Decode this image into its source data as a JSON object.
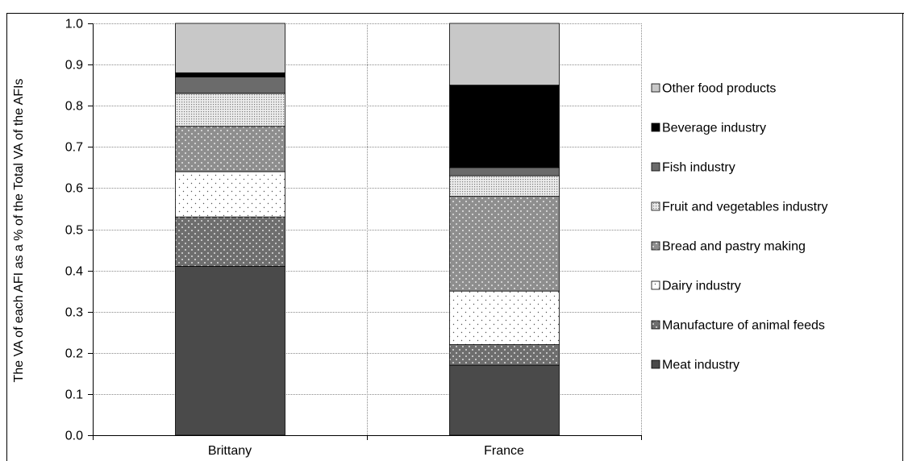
{
  "chart_data": {
    "type": "bar",
    "stacked": true,
    "title": "",
    "xlabel": "",
    "ylabel": "The VA of each AFI as a % of the Total VA of the AFIs",
    "ylim": [
      0,
      1.0
    ],
    "yticks": [
      "0.0",
      "0.1",
      "0.2",
      "0.3",
      "0.4",
      "0.5",
      "0.6",
      "0.7",
      "0.8",
      "0.9",
      "1.0"
    ],
    "grid": true,
    "legend_position": "right",
    "categories": [
      "Brittany",
      "France"
    ],
    "series": [
      {
        "name": "Meat industry",
        "values": [
          0.41,
          0.17
        ],
        "color": "#4a4a4a",
        "pattern": "solid"
      },
      {
        "name": "Manufacture of animal feeds",
        "values": [
          0.12,
          0.05
        ],
        "color": "#6e6e6e",
        "pattern": "dots"
      },
      {
        "name": "Dairy industry",
        "values": [
          0.11,
          0.13
        ],
        "color": "#ffffff",
        "pattern": "sparse-dots"
      },
      {
        "name": "Bread and pastry making",
        "values": [
          0.11,
          0.23
        ],
        "color": "#8e8e8e",
        "pattern": "dots"
      },
      {
        "name": "Fruit and vegetables industry",
        "values": [
          0.08,
          0.05
        ],
        "color": "#bdbdbd",
        "pattern": "dense-dots"
      },
      {
        "name": "Fish industry",
        "values": [
          0.04,
          0.02
        ],
        "color": "#6b6b6b",
        "pattern": "solid"
      },
      {
        "name": "Beverage industry",
        "values": [
          0.01,
          0.2
        ],
        "color": "#000000",
        "pattern": "solid"
      },
      {
        "name": "Other food products",
        "values": [
          0.12,
          0.15
        ],
        "color": "#c8c8c8",
        "pattern": "solid"
      }
    ],
    "legend_order": [
      "Other food products",
      "Beverage industry",
      "Fish industry",
      "Fruit and vegetables industry",
      "Bread and pastry making",
      "Dairy industry",
      "Manufacture of animal feeds",
      "Meat industry"
    ]
  }
}
